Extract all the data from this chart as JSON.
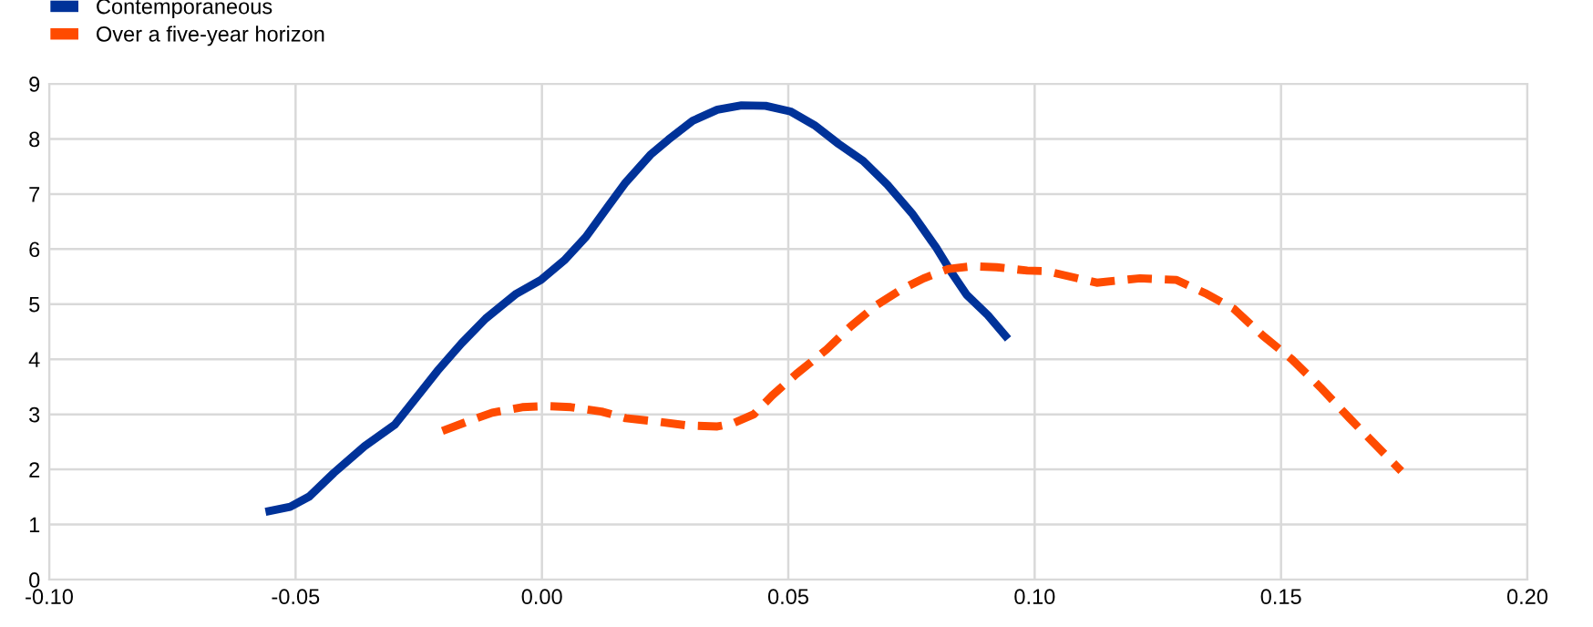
{
  "chart_data": {
    "type": "line",
    "legend": "top left",
    "grid": true,
    "xlim": [
      -0.1,
      0.2
    ],
    "xticks": [
      {
        "value": -0.1,
        "label": "-0.10"
      },
      {
        "value": -0.05,
        "label": "-0.05"
      },
      {
        "value": 0,
        "label": "0.00"
      },
      {
        "value": 0.05,
        "label": "0.05"
      },
      {
        "value": 0.1,
        "label": "0.10"
      },
      {
        "value": 0.15,
        "label": "0.15"
      },
      {
        "value": 0.2,
        "label": "0.20"
      }
    ],
    "ylim": [
      0,
      9
    ],
    "yticks": [
      0,
      1,
      2,
      3,
      4,
      5,
      6,
      7,
      8,
      9
    ],
    "series": [
      {
        "name": "Contemporaneous",
        "color": "#003299",
        "line_style": "solid",
        "x": [
          -0.0561,
          -0.0511,
          -0.0472,
          -0.0422,
          -0.036,
          -0.0299,
          -0.0249,
          -0.0212,
          -0.0163,
          -0.0114,
          -0.0052,
          -0.0002,
          0.0047,
          0.009,
          0.0133,
          0.017,
          0.022,
          0.0257,
          0.0306,
          0.0356,
          0.0405,
          0.0454,
          0.0504,
          0.0553,
          0.0602,
          0.0652,
          0.0701,
          0.0751,
          0.08,
          0.0831,
          0.0862,
          0.0905,
          0.0946
        ],
        "values": [
          1.23,
          1.32,
          1.51,
          1.94,
          2.42,
          2.81,
          3.37,
          3.79,
          4.29,
          4.74,
          5.19,
          5.44,
          5.81,
          6.23,
          6.76,
          7.21,
          7.71,
          7.99,
          8.33,
          8.53,
          8.61,
          8.6,
          8.5,
          8.25,
          7.91,
          7.6,
          7.17,
          6.65,
          6.03,
          5.58,
          5.17,
          4.8,
          4.37
        ]
      },
      {
        "name": "Over a five-year horizon",
        "color": "#ff4b00",
        "line_style": "dashed",
        "x": [
          -0.0202,
          -0.0151,
          -0.0101,
          -0.004,
          0.001,
          0.0059,
          0.0121,
          0.017,
          0.0232,
          0.0294,
          0.0356,
          0.0386,
          0.043,
          0.0467,
          0.0516,
          0.0578,
          0.0627,
          0.0677,
          0.0726,
          0.0775,
          0.0825,
          0.0874,
          0.0923,
          0.0985,
          0.1024,
          0.1126,
          0.1214,
          0.1288,
          0.1346,
          0.1405,
          0.1463,
          0.1522,
          0.158,
          0.1639,
          0.1697,
          0.1744
        ],
        "values": [
          2.7,
          2.87,
          3.03,
          3.13,
          3.15,
          3.13,
          3.05,
          2.93,
          2.87,
          2.8,
          2.78,
          2.83,
          3.0,
          3.34,
          3.73,
          4.18,
          4.6,
          4.97,
          5.25,
          5.47,
          5.64,
          5.69,
          5.67,
          5.61,
          5.6,
          5.39,
          5.47,
          5.44,
          5.2,
          4.91,
          4.43,
          4.0,
          3.49,
          2.93,
          2.4,
          1.97
        ]
      }
    ]
  }
}
